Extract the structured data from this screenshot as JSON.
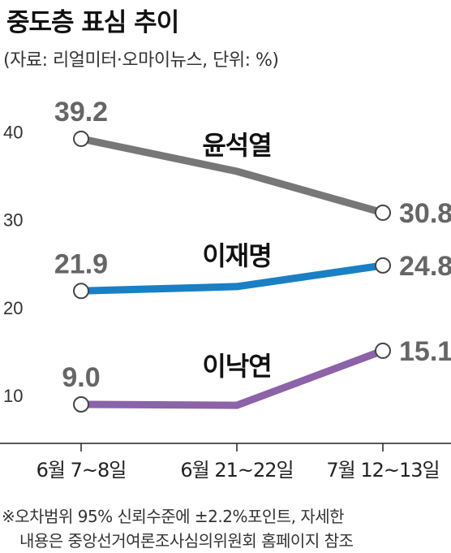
{
  "title": "중도층 표심 추이",
  "source": "(자료: 리얼미터·오마이뉴스, 단위: %)",
  "notes": [
    "※오차범위 95% 신뢰수준에 ±2.2%포인트, 자세한",
    "내용은 중앙선거여론조사심의위원회 홈페이지 참조"
  ],
  "chart_data": {
    "type": "line",
    "categories": [
      "6월 7~8일",
      "6월 21~22일",
      "7월 12~13일"
    ],
    "yticks": [
      "40",
      "30",
      "20",
      "10"
    ],
    "ylim": [
      5,
      45
    ],
    "grid": false,
    "series": [
      {
        "name": "윤석열",
        "values": [
          39.2,
          35.5,
          30.8
        ],
        "labels": [
          "39.2",
          null,
          "30.8"
        ],
        "color": "#777777"
      },
      {
        "name": "이재명",
        "values": [
          21.9,
          22.4,
          24.8
        ],
        "labels": [
          "21.9",
          null,
          "24.8"
        ],
        "color": "#1a7fc4"
      },
      {
        "name": "이낙연",
        "values": [
          9.0,
          8.9,
          15.1
        ],
        "labels": [
          "9.0",
          null,
          "15.1"
        ],
        "color": "#8c62a8"
      }
    ]
  }
}
